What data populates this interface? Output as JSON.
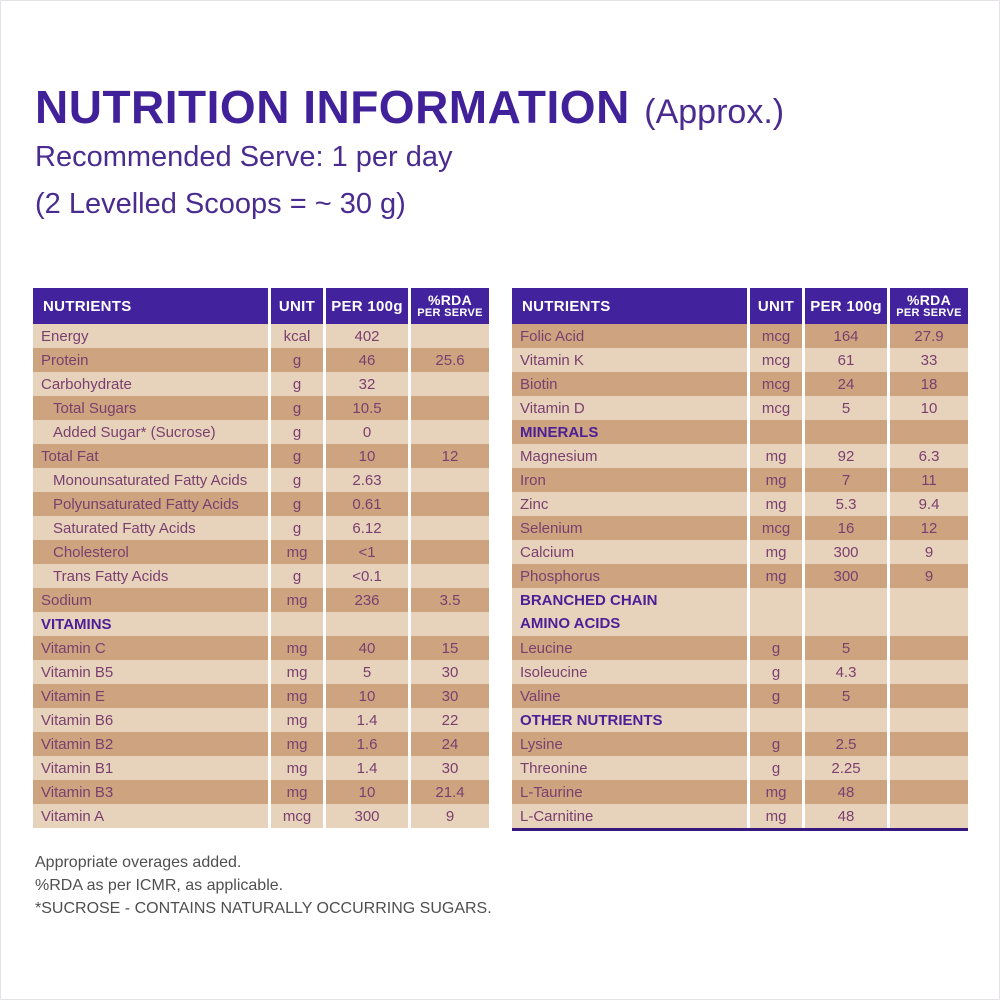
{
  "header": {
    "title": "NUTRITION INFORMATION",
    "approx": "(Approx.)",
    "serve_line1": "Recommended Serve: 1 per day",
    "serve_line2": "(2 Levelled Scoops = ~ 30 g)"
  },
  "columns": {
    "nutrients": "NUTRIENTS",
    "unit": "UNIT",
    "per_100g": "PER 100g",
    "rda_line1": "%RDA",
    "rda_line2": "PER SERVE"
  },
  "colors": {
    "accent_purple": "#42239d",
    "row_light": "#e7d2bc",
    "row_dark": "#cda380",
    "text_plum": "#7b3f6e",
    "footnote_gray": "#4f4f4f"
  },
  "tables": [
    {
      "id": "left",
      "start_shade": "light",
      "rows": [
        {
          "style": "item",
          "indent": false,
          "label": "Energy",
          "unit": "kcal",
          "per_100g": "402",
          "rda_percent": ""
        },
        {
          "style": "item",
          "indent": false,
          "label": "Protein",
          "unit": "g",
          "per_100g": "46",
          "rda_percent": "25.6"
        },
        {
          "style": "item",
          "indent": false,
          "label": "Carbohydrate",
          "unit": "g",
          "per_100g": "32",
          "rda_percent": ""
        },
        {
          "style": "item",
          "indent": true,
          "label": "Total Sugars",
          "unit": "g",
          "per_100g": "10.5",
          "rda_percent": ""
        },
        {
          "style": "item",
          "indent": true,
          "label": "Added Sugar* (Sucrose)",
          "unit": "g",
          "per_100g": "0",
          "rda_percent": ""
        },
        {
          "style": "item",
          "indent": false,
          "label": "Total Fat",
          "unit": "g",
          "per_100g": "10",
          "rda_percent": "12"
        },
        {
          "style": "item",
          "indent": true,
          "label": "Monounsaturated Fatty Acids",
          "unit": "g",
          "per_100g": "2.63",
          "rda_percent": ""
        },
        {
          "style": "item",
          "indent": true,
          "label": "Polyunsaturated Fatty Acids",
          "unit": "g",
          "per_100g": "0.61",
          "rda_percent": ""
        },
        {
          "style": "item",
          "indent": true,
          "label": "Saturated Fatty Acids",
          "unit": "g",
          "per_100g": "6.12",
          "rda_percent": ""
        },
        {
          "style": "item",
          "indent": true,
          "label": "Cholesterol",
          "unit": "mg",
          "per_100g": "<1",
          "rda_percent": ""
        },
        {
          "style": "item",
          "indent": true,
          "label": "Trans Fatty Acids",
          "unit": "g",
          "per_100g": "<0.1",
          "rda_percent": ""
        },
        {
          "style": "item",
          "indent": false,
          "label": "Sodium",
          "unit": "mg",
          "per_100g": "236",
          "rda_percent": "3.5"
        },
        {
          "style": "section",
          "indent": false,
          "label": "VITAMINS"
        },
        {
          "style": "item",
          "indent": false,
          "label": "Vitamin C",
          "unit": "mg",
          "per_100g": "40",
          "rda_percent": "15"
        },
        {
          "style": "item",
          "indent": false,
          "label": "Vitamin B5",
          "unit": "mg",
          "per_100g": "5",
          "rda_percent": "30"
        },
        {
          "style": "item",
          "indent": false,
          "label": "Vitamin E",
          "unit": "mg",
          "per_100g": "10",
          "rda_percent": "30"
        },
        {
          "style": "item",
          "indent": false,
          "label": "Vitamin B6",
          "unit": "mg",
          "per_100g": "1.4",
          "rda_percent": "22"
        },
        {
          "style": "item",
          "indent": false,
          "label": "Vitamin B2",
          "unit": "mg",
          "per_100g": "1.6",
          "rda_percent": "24"
        },
        {
          "style": "item",
          "indent": false,
          "label": "Vitamin B1",
          "unit": "mg",
          "per_100g": "1.4",
          "rda_percent": "30"
        },
        {
          "style": "item",
          "indent": false,
          "label": "Vitamin B3",
          "unit": "mg",
          "per_100g": "10",
          "rda_percent": "21.4"
        },
        {
          "style": "item",
          "indent": false,
          "label": "Vitamin A",
          "unit": "mcg",
          "per_100g": "300",
          "rda_percent": "9"
        }
      ]
    },
    {
      "id": "right",
      "start_shade": "dark",
      "rows": [
        {
          "style": "item",
          "indent": false,
          "label": "Folic Acid",
          "unit": "mcg",
          "per_100g": "164",
          "rda_percent": "27.9"
        },
        {
          "style": "item",
          "indent": false,
          "label": "Vitamin K",
          "unit": "mcg",
          "per_100g": "61",
          "rda_percent": "33"
        },
        {
          "style": "item",
          "indent": false,
          "label": "Biotin",
          "unit": "mcg",
          "per_100g": "24",
          "rda_percent": "18"
        },
        {
          "style": "item",
          "indent": false,
          "label": "Vitamin D",
          "unit": "mcg",
          "per_100g": "5",
          "rda_percent": "10"
        },
        {
          "style": "section",
          "indent": false,
          "label": "MINERALS"
        },
        {
          "style": "item",
          "indent": false,
          "label": "Magnesium",
          "unit": "mg",
          "per_100g": "92",
          "rda_percent": "6.3"
        },
        {
          "style": "item",
          "indent": false,
          "label": "Iron",
          "unit": "mg",
          "per_100g": "7",
          "rda_percent": "11"
        },
        {
          "style": "item",
          "indent": false,
          "label": "Zinc",
          "unit": "mg",
          "per_100g": "5.3",
          "rda_percent": "9.4"
        },
        {
          "style": "item",
          "indent": false,
          "label": "Selenium",
          "unit": "mcg",
          "per_100g": "16",
          "rda_percent": "12"
        },
        {
          "style": "item",
          "indent": false,
          "label": "Calcium",
          "unit": "mg",
          "per_100g": "300",
          "rda_percent": "9"
        },
        {
          "style": "item",
          "indent": false,
          "label": "Phosphorus",
          "unit": "mg",
          "per_100g": "300",
          "rda_percent": "9"
        },
        {
          "style": "section",
          "indent": false,
          "label": "BRANCHED CHAIN",
          "label_line2": "AMINO ACIDS"
        },
        {
          "style": "item",
          "indent": false,
          "label": "Leucine",
          "unit": "g",
          "per_100g": "5",
          "rda_percent": ""
        },
        {
          "style": "item",
          "indent": false,
          "label": "Isoleucine",
          "unit": "g",
          "per_100g": "4.3",
          "rda_percent": ""
        },
        {
          "style": "item",
          "indent": false,
          "label": "Valine",
          "unit": "g",
          "per_100g": "5",
          "rda_percent": ""
        },
        {
          "style": "section",
          "indent": false,
          "label": "OTHER NUTRIENTS"
        },
        {
          "style": "item",
          "indent": false,
          "label": "Lysine",
          "unit": "g",
          "per_100g": "2.5",
          "rda_percent": ""
        },
        {
          "style": "item",
          "indent": false,
          "label": "Threonine",
          "unit": "g",
          "per_100g": "2.25",
          "rda_percent": ""
        },
        {
          "style": "item",
          "indent": false,
          "label": "L-Taurine",
          "unit": "mg",
          "per_100g": "48",
          "rda_percent": ""
        },
        {
          "style": "item",
          "indent": false,
          "label": "L-Carnitine",
          "unit": "mg",
          "per_100g": "48",
          "rda_percent": ""
        }
      ]
    }
  ],
  "footnotes": [
    "Appropriate overages added.",
    "%RDA as per ICMR, as applicable.",
    "*SUCROSE - CONTAINS NATURALLY OCCURRING SUGARS."
  ]
}
